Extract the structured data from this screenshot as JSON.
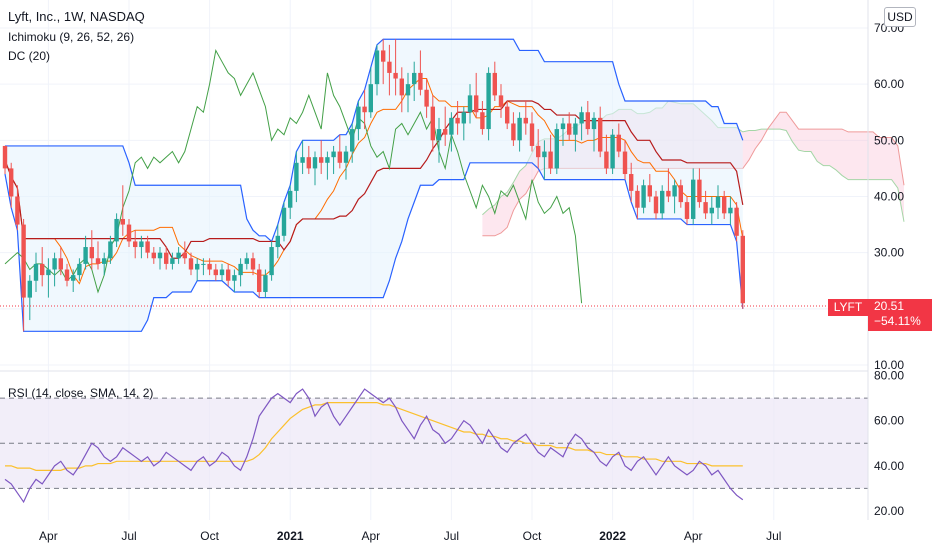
{
  "header": {
    "title": "Lyft, Inc., 1W, NASDAQ",
    "indicator_1": "Ichimoku (9, 26, 52, 26)",
    "indicator_2": "DC (20)",
    "currency_button": "USD"
  },
  "rsi_panel": {
    "label": "RSI (14, close, SMA, 14, 2)"
  },
  "price_label": {
    "ticker": "LYFT",
    "price": "20.51",
    "change": "−54.11%"
  },
  "colors": {
    "up": "#26a69a",
    "down": "#ef5350",
    "donchian": "#2962ff",
    "donchian_fill": "#e3f2fd",
    "tenkan": "#2962ff",
    "kijun": "#b71c1c",
    "chikou": "#43a047",
    "span_a": "#a5d6a7",
    "span_b": "#ef9a9a",
    "rsi": "#7e57c2",
    "rsi_ma": "#fbc02d",
    "rsi_band": "#ede7f6",
    "grid": "#f0f3fa",
    "price_line": "#f23645"
  },
  "chart_data": [
    {
      "type": "candlestick",
      "title": "Lyft, Inc., 1W, NASDAQ",
      "x_ticks": [
        "Apr",
        "Jul",
        "Oct",
        "2021",
        "Apr",
        "Jul",
        "Oct",
        "2022",
        "Apr",
        "Jul"
      ],
      "y_ticks": [
        "10.00",
        "20.00",
        "30.00",
        "40.00",
        "50.00",
        "60.00",
        "70.00"
      ],
      "ylim": [
        10,
        72
      ],
      "last_price": 20.51,
      "change_pct": -54.11,
      "ohlc_weekly": [
        [
          49,
          49,
          44,
          45
        ],
        [
          45,
          46,
          38,
          40
        ],
        [
          40,
          42,
          34,
          35
        ],
        [
          35,
          36,
          16,
          22
        ],
        [
          22,
          26,
          18,
          25
        ],
        [
          25,
          30,
          23,
          28
        ],
        [
          28,
          31,
          24,
          26
        ],
        [
          26,
          29,
          22,
          27
        ],
        [
          27,
          30,
          24,
          29
        ],
        [
          29,
          31,
          26,
          27
        ],
        [
          27,
          28,
          24,
          25
        ],
        [
          25,
          27,
          23,
          26
        ],
        [
          26,
          29,
          25,
          28
        ],
        [
          28,
          33,
          27,
          31
        ],
        [
          31,
          34,
          27,
          29
        ],
        [
          29,
          32,
          27,
          28
        ],
        [
          28,
          30,
          26,
          29
        ],
        [
          29,
          33,
          28,
          32
        ],
        [
          32,
          37,
          31,
          36
        ],
        [
          36,
          42,
          33,
          35
        ],
        [
          35,
          36,
          31,
          32
        ],
        [
          32,
          34,
          29,
          31
        ],
        [
          31,
          33,
          29,
          32
        ],
        [
          32,
          33,
          29,
          30
        ],
        [
          30,
          31,
          28,
          29
        ],
        [
          29,
          31,
          27,
          30
        ],
        [
          30,
          31,
          27,
          28
        ],
        [
          28,
          30,
          27,
          29
        ],
        [
          29,
          31,
          28,
          30
        ],
        [
          30,
          32,
          28,
          29
        ],
        [
          29,
          30,
          26,
          27
        ],
        [
          27,
          29,
          25,
          28
        ],
        [
          28,
          29,
          26,
          28
        ],
        [
          28,
          29,
          26,
          27
        ],
        [
          27,
          28,
          25,
          26
        ],
        [
          26,
          28,
          25,
          27
        ],
        [
          27,
          28,
          24,
          25
        ],
        [
          25,
          27,
          23,
          26
        ],
        [
          26,
          29,
          24,
          28
        ],
        [
          28,
          30,
          27,
          29
        ],
        [
          29,
          30,
          26,
          27
        ],
        [
          27,
          28,
          22,
          23
        ],
        [
          23,
          27,
          22,
          26
        ],
        [
          26,
          32,
          25,
          31
        ],
        [
          31,
          35,
          29,
          33
        ],
        [
          33,
          39,
          32,
          38
        ],
        [
          38,
          42,
          36,
          41
        ],
        [
          41,
          48,
          39,
          46
        ],
        [
          46,
          50,
          44,
          47
        ],
        [
          47,
          49,
          44,
          45
        ],
        [
          45,
          48,
          42,
          47
        ],
        [
          47,
          50,
          44,
          46
        ],
        [
          46,
          48,
          43,
          47
        ],
        [
          47,
          49,
          44,
          48
        ],
        [
          48,
          51,
          45,
          46
        ],
        [
          46,
          49,
          43,
          48
        ],
        [
          48,
          53,
          46,
          52
        ],
        [
          52,
          57,
          50,
          56
        ],
        [
          56,
          59,
          52,
          55
        ],
        [
          55,
          63,
          54,
          60
        ],
        [
          60,
          67,
          58,
          66
        ],
        [
          66,
          68,
          60,
          64
        ],
        [
          64,
          67,
          58,
          62
        ],
        [
          62,
          68,
          58,
          61
        ],
        [
          61,
          63,
          55,
          58
        ],
        [
          58,
          62,
          55,
          60
        ],
        [
          60,
          64,
          57,
          62
        ],
        [
          62,
          66,
          58,
          59
        ],
        [
          59,
          61,
          54,
          56
        ],
        [
          56,
          58,
          48,
          50
        ],
        [
          50,
          54,
          46,
          52
        ],
        [
          52,
          56,
          49,
          51
        ],
        [
          51,
          55,
          48,
          54
        ],
        [
          54,
          57,
          51,
          53
        ],
        [
          53,
          56,
          50,
          55
        ],
        [
          55,
          60,
          53,
          58
        ],
        [
          58,
          62,
          54,
          55
        ],
        [
          55,
          57,
          51,
          52
        ],
        [
          52,
          63,
          50,
          62
        ],
        [
          62,
          64,
          57,
          58
        ],
        [
          58,
          60,
          54,
          56
        ],
        [
          56,
          57,
          52,
          53
        ],
        [
          53,
          55,
          49,
          50
        ],
        [
          50,
          55,
          48,
          54
        ],
        [
          54,
          57,
          51,
          53
        ],
        [
          53,
          55,
          48,
          49
        ],
        [
          49,
          52,
          45,
          47
        ],
        [
          47,
          50,
          43,
          48
        ],
        [
          48,
          51,
          44,
          45
        ],
        [
          45,
          53,
          44,
          52
        ],
        [
          52,
          54,
          49,
          53
        ],
        [
          53,
          55,
          50,
          51
        ],
        [
          51,
          54,
          48,
          53
        ],
        [
          53,
          56,
          50,
          55
        ],
        [
          55,
          57,
          51,
          52
        ],
        [
          52,
          55,
          48,
          54
        ],
        [
          54,
          56,
          47,
          48
        ],
        [
          48,
          51,
          44,
          45
        ],
        [
          45,
          52,
          44,
          51
        ],
        [
          51,
          53,
          47,
          48
        ],
        [
          48,
          50,
          43,
          44
        ],
        [
          44,
          46,
          39,
          41
        ],
        [
          41,
          42,
          36,
          38
        ],
        [
          38,
          43,
          37,
          42
        ],
        [
          42,
          44,
          39,
          40
        ],
        [
          40,
          41,
          36,
          37
        ],
        [
          37,
          42,
          36,
          41
        ],
        [
          41,
          45,
          39,
          40
        ],
        [
          40,
          43,
          37,
          42
        ],
        [
          42,
          43,
          38,
          39
        ],
        [
          39,
          40,
          35,
          36
        ],
        [
          36,
          45,
          35,
          43
        ],
        [
          43,
          45,
          38,
          39
        ],
        [
          39,
          41,
          36,
          37
        ],
        [
          37,
          40,
          35,
          38
        ],
        [
          38,
          42,
          36,
          40
        ],
        [
          40,
          41,
          36,
          37
        ],
        [
          37,
          40,
          35,
          38
        ],
        [
          38,
          39,
          32,
          33
        ],
        [
          33,
          34,
          20,
          21
        ]
      ]
    },
    {
      "type": "line",
      "title": "RSI (14, close, SMA, 14, 2)",
      "y_ticks": [
        "20.00",
        "40.00",
        "60.00",
        "80.00"
      ],
      "ylim": [
        17,
        82
      ],
      "bands": [
        30,
        50,
        70
      ],
      "series": [
        {
          "name": "RSI",
          "values": [
            34,
            32,
            28,
            24,
            30,
            34,
            32,
            36,
            40,
            42,
            38,
            36,
            40,
            45,
            50,
            48,
            44,
            42,
            44,
            48,
            46,
            44,
            42,
            44,
            40,
            42,
            46,
            44,
            42,
            40,
            38,
            42,
            44,
            40,
            42,
            46,
            44,
            40,
            38,
            44,
            52,
            62,
            66,
            70,
            72,
            70,
            68,
            72,
            74,
            70,
            62,
            66,
            68,
            62,
            58,
            62,
            66,
            70,
            74,
            72,
            70,
            68,
            70,
            66,
            60,
            56,
            52,
            58,
            62,
            56,
            54,
            50,
            52,
            56,
            60,
            58,
            54,
            50,
            56,
            52,
            48,
            46,
            50,
            52,
            54,
            50,
            46,
            44,
            48,
            46,
            44,
            50,
            54,
            52,
            48,
            46,
            42,
            40,
            44,
            46,
            40,
            38,
            42,
            44,
            40,
            36,
            40,
            44,
            40,
            38,
            36,
            38,
            42,
            40,
            36,
            38,
            34,
            30,
            27,
            25
          ]
        },
        {
          "name": "RSI-based MA",
          "values": [
            40,
            40,
            39,
            39,
            39,
            38,
            38,
            38,
            38,
            38,
            39,
            39,
            39,
            40,
            40,
            41,
            41,
            41,
            42,
            42,
            42,
            42,
            42,
            42,
            42,
            42,
            42,
            42,
            42,
            42,
            42,
            42,
            42,
            42,
            42,
            42,
            42,
            42,
            42,
            42,
            43,
            45,
            48,
            52,
            55,
            58,
            61,
            63,
            65,
            66,
            67,
            67,
            68,
            68,
            68,
            68,
            68,
            68,
            68,
            68,
            68,
            67,
            67,
            66,
            65,
            64,
            63,
            62,
            61,
            60,
            59,
            58,
            57,
            56,
            55,
            55,
            54,
            54,
            53,
            53,
            52,
            52,
            51,
            51,
            50,
            50,
            49,
            49,
            49,
            48,
            48,
            48,
            47,
            47,
            47,
            46,
            46,
            45,
            45,
            45,
            44,
            44,
            44,
            43,
            43,
            43,
            42,
            42,
            42,
            42,
            41,
            41,
            41,
            41,
            40,
            40,
            40,
            40,
            40,
            40
          ]
        }
      ]
    }
  ]
}
